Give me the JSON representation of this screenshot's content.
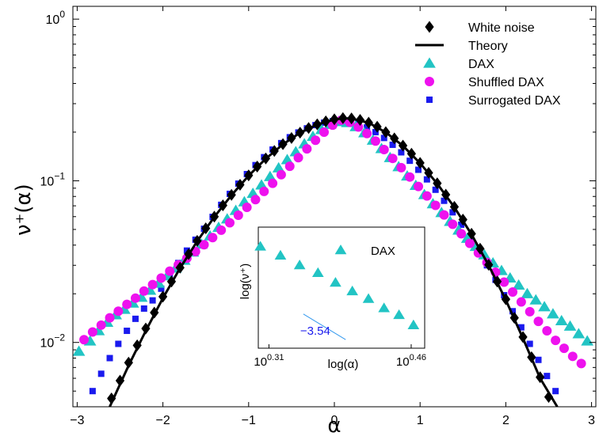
{
  "chart_data": {
    "type": "scatter",
    "xlabel": "α",
    "ylabel": "ν⁺(α)",
    "y_scale": "log",
    "xlim": [
      -3.05,
      3.05
    ],
    "ylim": [
      0.004,
      1.2
    ],
    "x_ticks": [
      "−3",
      "−2",
      "−1",
      "0",
      "1",
      "2",
      "3"
    ],
    "y_ticks": [
      {
        "base": "10",
        "exp": "0"
      },
      {
        "base": "10",
        "exp": "−1"
      },
      {
        "base": "10",
        "exp": "−2"
      }
    ],
    "legend_position": "top-right",
    "series": [
      {
        "name": "White noise",
        "marker": "diamond",
        "color": "#000000",
        "points": [
          [
            -2.6,
            0.0045
          ],
          [
            -2.5,
            0.0058
          ],
          [
            -2.4,
            0.0075
          ],
          [
            -2.3,
            0.0096
          ],
          [
            -2.2,
            0.0122
          ],
          [
            -2.1,
            0.0153
          ],
          [
            -2.0,
            0.0192
          ],
          [
            -1.9,
            0.0238
          ],
          [
            -1.8,
            0.029
          ],
          [
            -1.7,
            0.0352
          ],
          [
            -1.6,
            0.0425
          ],
          [
            -1.5,
            0.0508
          ],
          [
            -1.4,
            0.06
          ],
          [
            -1.3,
            0.0705
          ],
          [
            -1.2,
            0.0818
          ],
          [
            -1.1,
            0.0945
          ],
          [
            -1.0,
            0.108
          ],
          [
            -0.9,
            0.1225
          ],
          [
            -0.8,
            0.1375
          ],
          [
            -0.7,
            0.153
          ],
          [
            -0.6,
            0.1685
          ],
          [
            -0.5,
            0.184
          ],
          [
            -0.4,
            0.1985
          ],
          [
            -0.3,
            0.212
          ],
          [
            -0.2,
            0.2235
          ],
          [
            -0.1,
            0.233
          ],
          [
            0.0,
            0.24
          ],
          [
            0.1,
            0.244
          ],
          [
            0.2,
            0.243
          ],
          [
            0.3,
            0.238
          ],
          [
            0.4,
            0.229
          ],
          [
            0.5,
            0.216
          ],
          [
            0.6,
            0.2
          ],
          [
            0.7,
            0.183
          ],
          [
            0.8,
            0.165
          ],
          [
            0.9,
            0.147
          ],
          [
            1.0,
            0.129
          ],
          [
            1.1,
            0.112
          ],
          [
            1.2,
            0.0965
          ],
          [
            1.3,
            0.082
          ],
          [
            1.4,
            0.069
          ],
          [
            1.5,
            0.0575
          ],
          [
            1.6,
            0.047
          ],
          [
            1.7,
            0.038
          ],
          [
            1.8,
            0.0302
          ],
          [
            1.9,
            0.0238
          ],
          [
            2.0,
            0.0185
          ],
          [
            2.1,
            0.0142
          ],
          [
            2.2,
            0.0108
          ],
          [
            2.3,
            0.0081
          ],
          [
            2.4,
            0.0061
          ],
          [
            2.5,
            0.0046
          ]
        ]
      },
      {
        "name": "Theory",
        "marker": "line",
        "color": "#000000",
        "points": [
          [
            -2.62,
            0.004
          ],
          [
            -2.4,
            0.0072
          ],
          [
            -2.2,
            0.0118
          ],
          [
            -2.0,
            0.0188
          ],
          [
            -1.8,
            0.0288
          ],
          [
            -1.6,
            0.0423
          ],
          [
            -1.4,
            0.0598
          ],
          [
            -1.2,
            0.0815
          ],
          [
            -1.0,
            0.1075
          ],
          [
            -0.8,
            0.1368
          ],
          [
            -0.6,
            0.168
          ],
          [
            -0.4,
            0.198
          ],
          [
            -0.2,
            0.223
          ],
          [
            0.0,
            0.2395
          ],
          [
            0.1,
            0.2435
          ],
          [
            0.2,
            0.2425
          ],
          [
            0.4,
            0.2285
          ],
          [
            0.6,
            0.1995
          ],
          [
            0.8,
            0.1645
          ],
          [
            1.0,
            0.1285
          ],
          [
            1.2,
            0.096
          ],
          [
            1.4,
            0.0685
          ],
          [
            1.6,
            0.0466
          ],
          [
            1.8,
            0.03
          ],
          [
            2.0,
            0.0183
          ],
          [
            2.2,
            0.0106
          ],
          [
            2.4,
            0.006
          ],
          [
            2.6,
            0.004
          ]
        ]
      },
      {
        "name": "DAX",
        "marker": "triangle",
        "color": "#22c4c4",
        "points": [
          [
            -2.98,
            0.0088
          ],
          [
            -2.85,
            0.0102
          ],
          [
            -2.75,
            0.0118
          ],
          [
            -2.65,
            0.0133
          ],
          [
            -2.55,
            0.0148
          ],
          [
            -2.45,
            0.016
          ],
          [
            -2.35,
            0.0175
          ],
          [
            -2.25,
            0.019
          ],
          [
            -2.15,
            0.021
          ],
          [
            -2.05,
            0.0232
          ],
          [
            -1.95,
            0.0258
          ],
          [
            -1.85,
            0.0288
          ],
          [
            -1.75,
            0.0322
          ],
          [
            -1.65,
            0.0362
          ],
          [
            -1.55,
            0.0405
          ],
          [
            -1.45,
            0.0455
          ],
          [
            -1.35,
            0.0515
          ],
          [
            -1.25,
            0.058
          ],
          [
            -1.15,
            0.0655
          ],
          [
            -1.05,
            0.074
          ],
          [
            -0.95,
            0.0835
          ],
          [
            -0.85,
            0.094
          ],
          [
            -0.75,
            0.106
          ],
          [
            -0.65,
            0.12
          ],
          [
            -0.55,
            0.135
          ],
          [
            -0.45,
            0.151
          ],
          [
            -0.35,
            0.169
          ],
          [
            -0.25,
            0.188
          ],
          [
            -0.15,
            0.207
          ],
          [
            -0.05,
            0.223
          ],
          [
            0.05,
            0.232
          ],
          [
            0.15,
            0.229
          ],
          [
            0.25,
            0.216
          ],
          [
            0.35,
            0.198
          ],
          [
            0.45,
            0.178
          ],
          [
            0.55,
            0.158
          ],
          [
            0.65,
            0.139
          ],
          [
            0.75,
            0.122
          ],
          [
            0.85,
            0.107
          ],
          [
            0.95,
            0.0935
          ],
          [
            1.05,
            0.082
          ],
          [
            1.15,
            0.072
          ],
          [
            1.25,
            0.0635
          ],
          [
            1.35,
            0.056
          ],
          [
            1.45,
            0.0495
          ],
          [
            1.55,
            0.044
          ],
          [
            1.65,
            0.0392
          ],
          [
            1.75,
            0.0348
          ],
          [
            1.85,
            0.031
          ],
          [
            1.95,
            0.0278
          ],
          [
            2.05,
            0.025
          ],
          [
            2.15,
            0.0226
          ],
          [
            2.25,
            0.02
          ],
          [
            2.35,
            0.0183
          ],
          [
            2.45,
            0.0166
          ],
          [
            2.55,
            0.015
          ],
          [
            2.65,
            0.0136
          ],
          [
            2.75,
            0.0126
          ],
          [
            2.85,
            0.0113
          ],
          [
            2.95,
            0.0102
          ]
        ]
      },
      {
        "name": "Shuffled DAX",
        "marker": "circle",
        "color": "#ee11ee",
        "points": [
          [
            -2.92,
            0.0104
          ],
          [
            -2.82,
            0.0116
          ],
          [
            -2.72,
            0.0128
          ],
          [
            -2.62,
            0.0142
          ],
          [
            -2.52,
            0.0156
          ],
          [
            -2.42,
            0.0172
          ],
          [
            -2.32,
            0.0188
          ],
          [
            -2.22,
            0.0208
          ],
          [
            -2.12,
            0.0228
          ],
          [
            -2.02,
            0.025
          ],
          [
            -1.92,
            0.0276
          ],
          [
            -1.82,
            0.0302
          ],
          [
            -1.72,
            0.0332
          ],
          [
            -1.62,
            0.0365
          ],
          [
            -1.52,
            0.0402
          ],
          [
            -1.42,
            0.0445
          ],
          [
            -1.32,
            0.0495
          ],
          [
            -1.22,
            0.055
          ],
          [
            -1.12,
            0.0612
          ],
          [
            -1.02,
            0.0685
          ],
          [
            -0.92,
            0.0765
          ],
          [
            -0.82,
            0.086
          ],
          [
            -0.72,
            0.0965
          ],
          [
            -0.62,
            0.109
          ],
          [
            -0.52,
            0.123
          ],
          [
            -0.42,
            0.139
          ],
          [
            -0.32,
            0.1575
          ],
          [
            -0.22,
            0.178
          ],
          [
            -0.12,
            0.2
          ],
          [
            -0.02,
            0.221
          ],
          [
            0.08,
            0.237
          ],
          [
            0.18,
            0.23
          ],
          [
            0.28,
            0.215
          ],
          [
            0.38,
            0.196
          ],
          [
            0.48,
            0.176
          ],
          [
            0.58,
            0.156
          ],
          [
            0.68,
            0.1375
          ],
          [
            0.78,
            0.1205
          ],
          [
            0.88,
            0.1055
          ],
          [
            0.98,
            0.0922
          ],
          [
            1.08,
            0.0805
          ],
          [
            1.18,
            0.0705
          ],
          [
            1.28,
            0.0615
          ],
          [
            1.38,
            0.0538
          ],
          [
            1.48,
            0.047
          ],
          [
            1.58,
            0.041
          ],
          [
            1.68,
            0.0358
          ],
          [
            1.78,
            0.0312
          ],
          [
            1.88,
            0.0272
          ],
          [
            1.98,
            0.0236
          ],
          [
            2.08,
            0.0205
          ],
          [
            2.18,
            0.0178
          ],
          [
            2.28,
            0.0155
          ],
          [
            2.38,
            0.0135
          ],
          [
            2.48,
            0.0118
          ],
          [
            2.58,
            0.0103
          ],
          [
            2.68,
            0.0092
          ],
          [
            2.78,
            0.0082
          ],
          [
            2.88,
            0.0074
          ]
        ]
      },
      {
        "name": "Surrogated DAX",
        "marker": "square",
        "color": "#1a1aee",
        "points": [
          [
            -2.82,
            0.005
          ],
          [
            -2.72,
            0.0064
          ],
          [
            -2.62,
            0.008
          ],
          [
            -2.52,
            0.0098
          ],
          [
            -2.42,
            0.0118
          ],
          [
            -2.32,
            0.014
          ],
          [
            -2.22,
            0.0162
          ],
          [
            -2.12,
            0.0182
          ],
          [
            -2.02,
            0.0215
          ],
          [
            -1.92,
            0.0255
          ],
          [
            -1.82,
            0.031
          ],
          [
            -1.72,
            0.037
          ],
          [
            -1.62,
            0.0432
          ],
          [
            -1.52,
            0.0505
          ],
          [
            -1.42,
            0.0598
          ],
          [
            -1.32,
            0.071
          ],
          [
            -1.22,
            0.083
          ],
          [
            -1.12,
            0.096
          ],
          [
            -1.02,
            0.11
          ],
          [
            -0.92,
            0.125
          ],
          [
            -0.82,
            0.14
          ],
          [
            -0.72,
            0.156
          ],
          [
            -0.62,
            0.171
          ],
          [
            -0.52,
            0.186
          ],
          [
            -0.42,
            0.199
          ],
          [
            -0.32,
            0.211
          ],
          [
            -0.22,
            0.221
          ],
          [
            -0.12,
            0.229
          ],
          [
            -0.02,
            0.234
          ],
          [
            0.08,
            0.235
          ],
          [
            0.18,
            0.232
          ],
          [
            0.28,
            0.225
          ],
          [
            0.38,
            0.214
          ],
          [
            0.48,
            0.2
          ],
          [
            0.58,
            0.184
          ],
          [
            0.68,
            0.167
          ],
          [
            0.78,
            0.15
          ],
          [
            0.88,
            0.133
          ],
          [
            0.98,
            0.117
          ],
          [
            1.08,
            0.102
          ],
          [
            1.18,
            0.088
          ],
          [
            1.28,
            0.0752
          ],
          [
            1.38,
            0.0638
          ],
          [
            1.48,
            0.0535
          ],
          [
            1.58,
            0.0446
          ],
          [
            1.68,
            0.0368
          ],
          [
            1.78,
            0.03
          ],
          [
            1.88,
            0.0244
          ],
          [
            1.98,
            0.0196
          ],
          [
            2.08,
            0.0156
          ],
          [
            2.18,
            0.0124
          ],
          [
            2.28,
            0.0098
          ],
          [
            2.38,
            0.0078
          ],
          [
            2.48,
            0.0062
          ],
          [
            2.58,
            0.005
          ]
        ]
      }
    ],
    "inset": {
      "type": "scatter",
      "x_scale": "log",
      "y_scale": "log",
      "xlabel": "log(α)",
      "ylabel": "log(ν⁺)",
      "x_ticks": [
        {
          "base": "10",
          "exp": "0.31",
          "value": 2.042
        },
        {
          "base": "10",
          "exp": "0.46",
          "value": 2.884
        }
      ],
      "xlim": [
        1.99,
        2.98
      ],
      "ylim": [
        0.0118,
        0.058
      ],
      "slope_label": "−3.54",
      "slope_line": [
        [
          2.22,
          0.0185
        ],
        [
          2.46,
          0.0132
        ]
      ],
      "legend_label": "DAX",
      "marker_color": "#22c4c4",
      "points": [
        [
          2.0,
          0.045
        ],
        [
          2.1,
          0.04
        ],
        [
          2.2,
          0.0352
        ],
        [
          2.3,
          0.0318
        ],
        [
          2.4,
          0.028
        ],
        [
          2.5,
          0.025
        ],
        [
          2.6,
          0.0226
        ],
        [
          2.7,
          0.02
        ],
        [
          2.8,
          0.0183
        ],
        [
          2.9,
          0.016
        ]
      ]
    }
  }
}
